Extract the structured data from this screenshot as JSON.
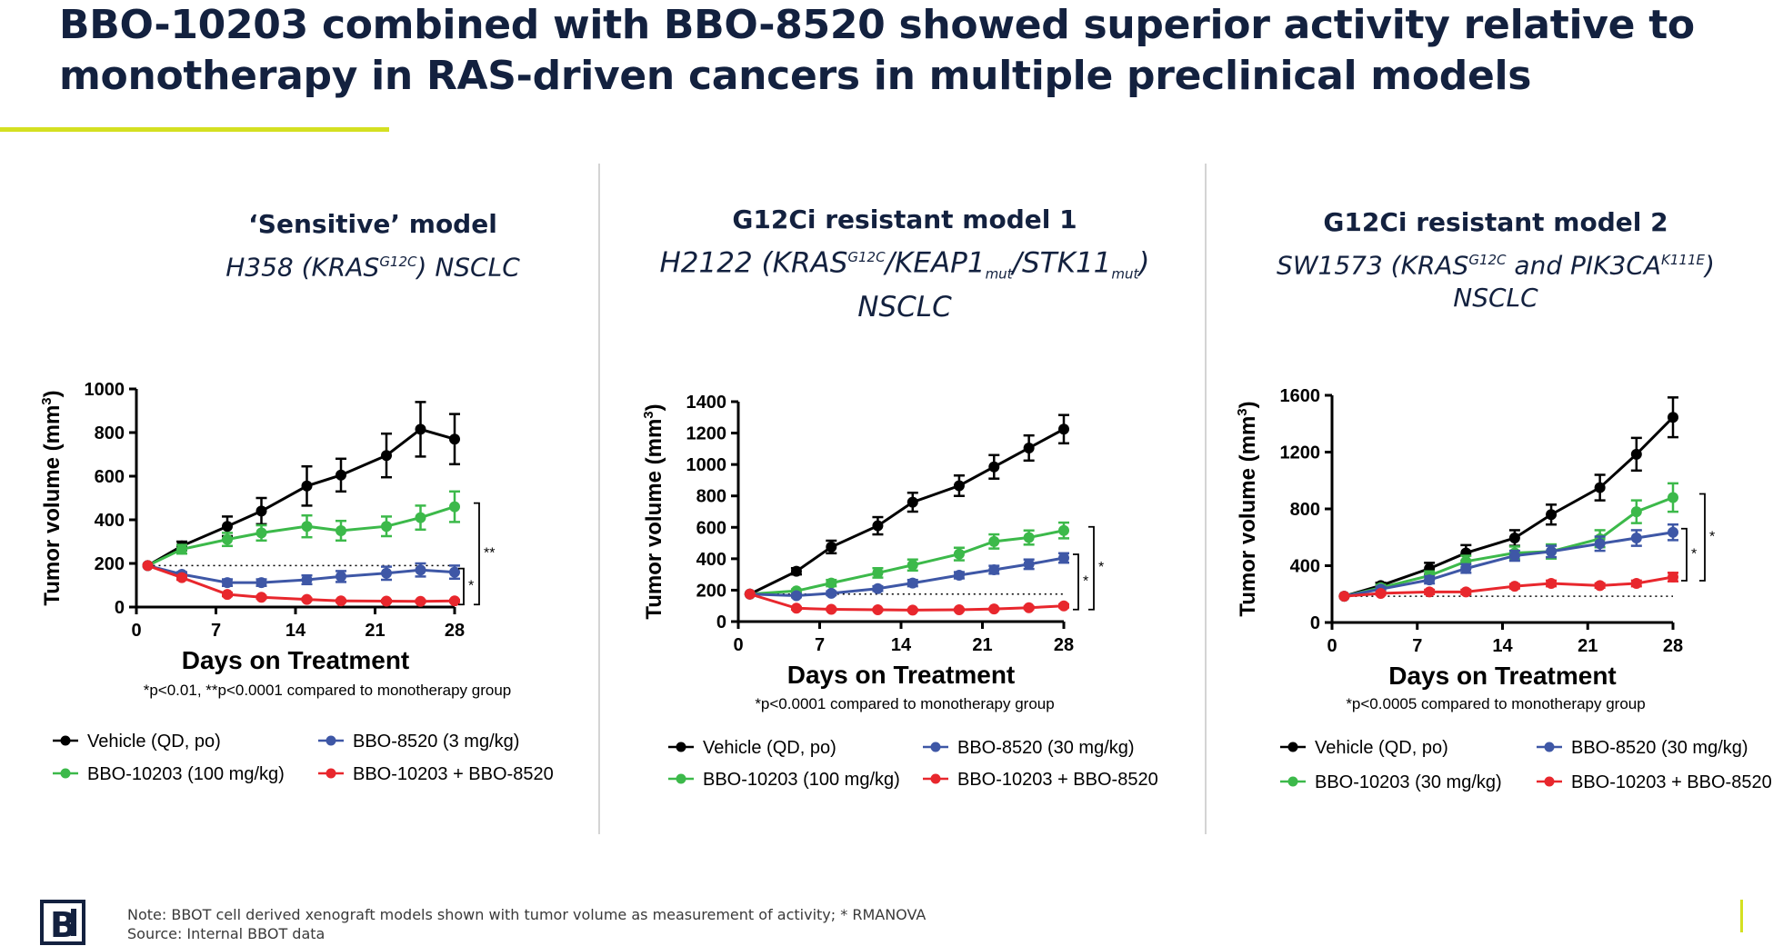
{
  "slide": {
    "title_line1": "BBO-10203 combined with BBO-8520 showed superior activity relative to",
    "title_line2": "monotherapy in RAS-driven cancers in multiple preclinical models",
    "accent_color": "#d4e021",
    "title_color": "#13213f",
    "note_line1": "Note: BBOT cell derived xenograft models shown with tumor volume as measurement of activity; * RMANOVA",
    "note_line2": "Source: Internal BBOT data",
    "logo_text": "B"
  },
  "panels": [
    {
      "title": "‘Sensitive’ model",
      "sub_a": "H358 (KRAS",
      "sup_a": "G12C",
      "sub_b": ") NSCLC",
      "footnote": "*p<0.01, **p<0.0001 compared to monotherapy group"
    },
    {
      "title": "G12Ci resistant model 1",
      "sub_a": "H2122 (KRAS",
      "sup_a": "G12C",
      "sub_b": "/KEAP1",
      "sub_sub1": "mut",
      "sub_c": "/STK11",
      "sub_sub2": "mut",
      "sub_d": ")",
      "sub_line2": "NSCLC",
      "footnote": "*p<0.0001 compared to monotherapy group"
    },
    {
      "title": "G12Ci resistant model 2",
      "sub_a": "SW1573 (KRAS",
      "sup_a": "G12C",
      "sub_b": " and PIK3CA",
      "sup_b": "K111E",
      "sub_c": ")",
      "sub_line2": "NSCLC",
      "footnote": "*p<0.0005 compared to monotherapy group"
    }
  ],
  "chart_data": [
    {
      "type": "line",
      "xlabel": "Days on Treatment",
      "ylabel": "Tumor volume (mm3)",
      "xlim": [
        0,
        28
      ],
      "ylim": [
        0,
        1000
      ],
      "xticks": [
        0,
        7,
        14,
        21,
        28
      ],
      "yticks": [
        0,
        200,
        400,
        600,
        800,
        1000
      ],
      "baseline": 190,
      "series": [
        {
          "name": "Vehicle (QD, po)",
          "color": "#000000",
          "x": [
            1,
            4,
            8,
            11,
            15,
            18,
            22,
            25,
            28
          ],
          "y": [
            190,
            280,
            370,
            440,
            555,
            605,
            695,
            815,
            770
          ],
          "err": [
            0,
            20,
            45,
            60,
            90,
            75,
            100,
            125,
            115
          ]
        },
        {
          "name": "BBO-10203 (100 mg/kg)",
          "color": "#3cb94a",
          "x": [
            1,
            4,
            8,
            11,
            15,
            18,
            22,
            25,
            28
          ],
          "y": [
            190,
            265,
            310,
            340,
            370,
            350,
            370,
            410,
            460
          ],
          "err": [
            0,
            20,
            30,
            35,
            50,
            45,
            45,
            55,
            70
          ]
        },
        {
          "name": "BBO-8520 (3 mg/kg)",
          "color": "#3e57a6",
          "x": [
            1,
            4,
            8,
            11,
            15,
            18,
            22,
            25,
            28
          ],
          "y": [
            190,
            150,
            112,
            112,
            125,
            140,
            155,
            170,
            160
          ],
          "err": [
            0,
            10,
            15,
            15,
            20,
            25,
            30,
            30,
            30
          ]
        },
        {
          "name": "BBO-10203 + BBO-8520",
          "color": "#e8272d",
          "x": [
            1,
            4,
            8,
            11,
            15,
            18,
            22,
            25,
            28
          ],
          "y": [
            190,
            135,
            58,
            45,
            35,
            28,
            27,
            26,
            28
          ],
          "err": [
            0,
            10,
            8,
            6,
            5,
            5,
            5,
            5,
            5
          ]
        }
      ],
      "sig_inner": "*",
      "sig_outer": "**"
    },
    {
      "type": "line",
      "xlabel": "Days on Treatment",
      "ylabel": "Tumor volume (mm3)",
      "xlim": [
        0,
        28
      ],
      "ylim": [
        0,
        1400
      ],
      "xticks": [
        0,
        7,
        14,
        21,
        28
      ],
      "yticks": [
        0,
        200,
        400,
        600,
        800,
        1000,
        1200,
        1400
      ],
      "baseline": 175,
      "series": [
        {
          "name": "Vehicle (QD, po)",
          "color": "#000000",
          "x": [
            1,
            5,
            8,
            12,
            15,
            19,
            22,
            25,
            28
          ],
          "y": [
            175,
            320,
            475,
            610,
            760,
            865,
            985,
            1105,
            1225
          ],
          "err": [
            0,
            20,
            40,
            55,
            60,
            65,
            75,
            80,
            90
          ]
        },
        {
          "name": "BBO-10203 (100 mg/kg)",
          "color": "#3cb94a",
          "x": [
            1,
            5,
            8,
            12,
            15,
            19,
            22,
            25,
            28
          ],
          "y": [
            175,
            195,
            245,
            310,
            360,
            430,
            510,
            535,
            580
          ],
          "err": [
            0,
            10,
            20,
            30,
            35,
            40,
            45,
            45,
            50
          ]
        },
        {
          "name": "BBO-8520 (30 mg/kg)",
          "color": "#3e57a6",
          "x": [
            1,
            5,
            8,
            12,
            15,
            19,
            22,
            25,
            28
          ],
          "y": [
            175,
            165,
            180,
            210,
            245,
            295,
            330,
            365,
            405
          ],
          "err": [
            0,
            10,
            12,
            15,
            20,
            20,
            25,
            30,
            30
          ]
        },
        {
          "name": "BBO-10203 + BBO-8520",
          "color": "#e8272d",
          "x": [
            1,
            5,
            8,
            12,
            15,
            19,
            22,
            25,
            28
          ],
          "y": [
            175,
            85,
            78,
            75,
            73,
            75,
            80,
            88,
            100
          ],
          "err": [
            0,
            8,
            6,
            6,
            6,
            6,
            6,
            8,
            10
          ]
        }
      ],
      "sig_inner": "*",
      "sig_outer": "*"
    },
    {
      "type": "line",
      "xlabel": "Days on Treatment",
      "ylabel": "Tumor volume (mm3)",
      "xlim": [
        0,
        28
      ],
      "ylim": [
        0,
        1600
      ],
      "xticks": [
        0,
        7,
        14,
        21,
        28
      ],
      "yticks": [
        0,
        400,
        800,
        1200,
        1600
      ],
      "baseline": 185,
      "series": [
        {
          "name": "Vehicle (QD, po)",
          "color": "#000000",
          "x": [
            1,
            4,
            8,
            11,
            15,
            18,
            22,
            25,
            28
          ],
          "y": [
            185,
            260,
            380,
            490,
            595,
            760,
            950,
            1185,
            1445
          ],
          "err": [
            0,
            20,
            40,
            55,
            55,
            70,
            90,
            115,
            140
          ]
        },
        {
          "name": "BBO-10203 (30 mg/kg)",
          "color": "#3cb94a",
          "x": [
            1,
            4,
            8,
            11,
            15,
            18,
            22,
            25,
            28
          ],
          "y": [
            185,
            245,
            330,
            430,
            490,
            500,
            590,
            780,
            880
          ],
          "err": [
            0,
            20,
            30,
            40,
            45,
            50,
            60,
            80,
            100
          ]
        },
        {
          "name": "BBO-8520 (30 mg/kg)",
          "color": "#3e57a6",
          "x": [
            1,
            4,
            8,
            11,
            15,
            18,
            22,
            25,
            28
          ],
          "y": [
            185,
            235,
            300,
            380,
            470,
            500,
            555,
            595,
            635
          ],
          "err": [
            0,
            15,
            25,
            30,
            35,
            40,
            50,
            55,
            55
          ]
        },
        {
          "name": "BBO-10203 + BBO-8520",
          "color": "#e8272d",
          "x": [
            1,
            4,
            8,
            11,
            15,
            18,
            22,
            25,
            28
          ],
          "y": [
            185,
            205,
            215,
            215,
            255,
            275,
            260,
            275,
            320
          ],
          "err": [
            0,
            10,
            15,
            15,
            15,
            20,
            15,
            20,
            30
          ]
        }
      ],
      "sig_inner": "*",
      "sig_outer": "*"
    }
  ]
}
